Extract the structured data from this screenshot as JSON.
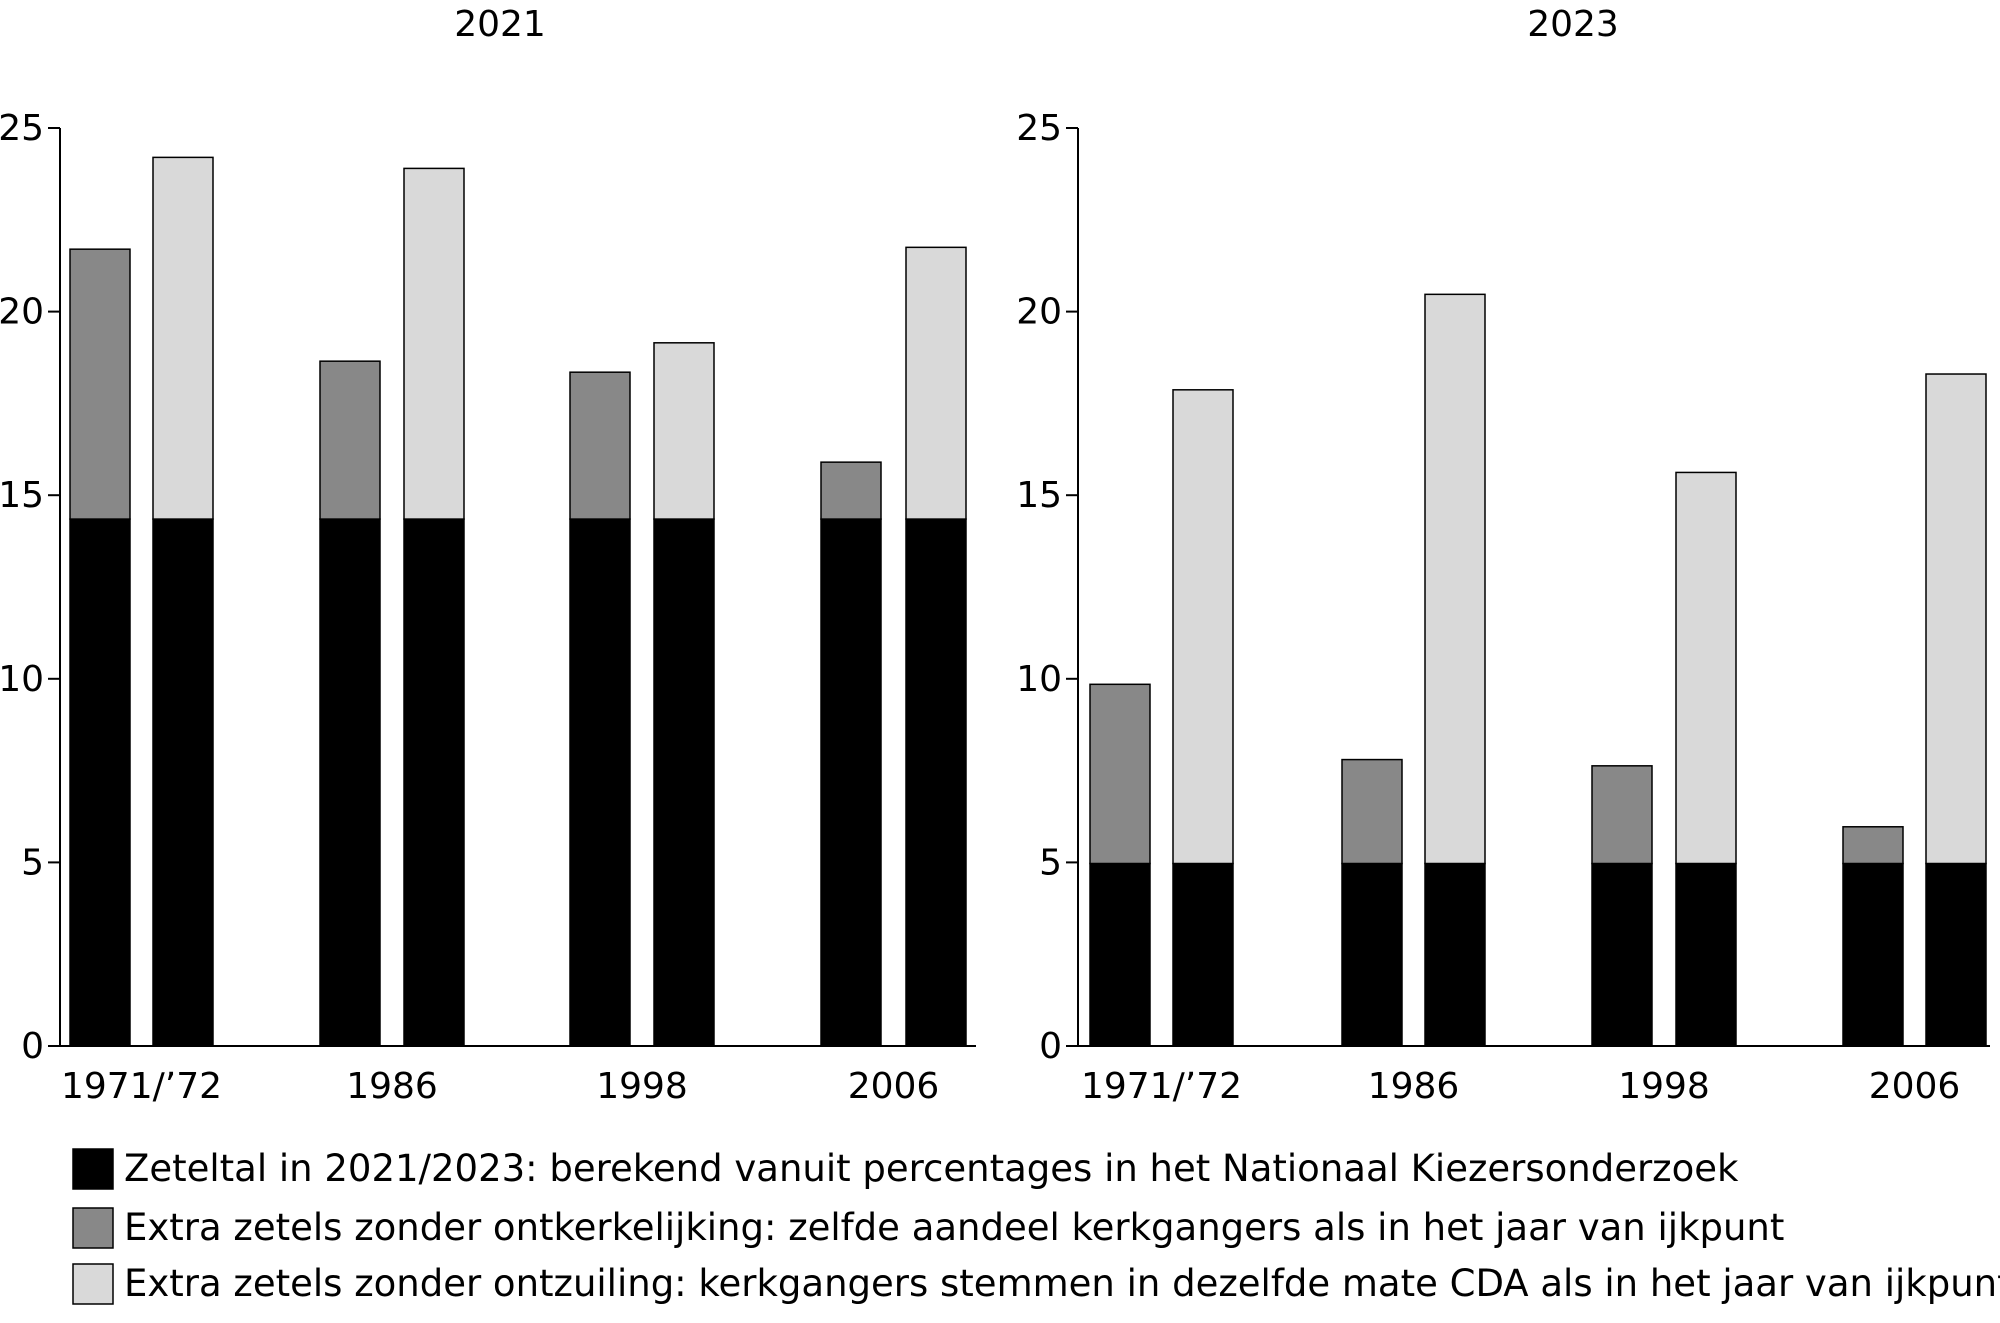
{
  "chart_data": [
    {
      "type": "bar",
      "stacked": true,
      "title": "2021",
      "categories": [
        "1971/’72",
        "1986",
        "1998",
        "2006"
      ],
      "ylim": [
        0,
        25
      ],
      "yticks": [
        0,
        5,
        10,
        15,
        20,
        25
      ],
      "bars": [
        {
          "category": "1971/’72",
          "scenario": "ontkerkelijking",
          "base": 14.35,
          "extra": 7.35
        },
        {
          "category": "1971/’72",
          "scenario": "ontzuiling",
          "base": 14.35,
          "extra": 9.85
        },
        {
          "category": "1986",
          "scenario": "ontkerkelijking",
          "base": 14.35,
          "extra": 4.3
        },
        {
          "category": "1986",
          "scenario": "ontzuiling",
          "base": 14.35,
          "extra": 9.55
        },
        {
          "category": "1998",
          "scenario": "ontkerkelijking",
          "base": 14.35,
          "extra": 4.0
        },
        {
          "category": "1998",
          "scenario": "ontzuiling",
          "base": 14.35,
          "extra": 4.8
        },
        {
          "category": "2006",
          "scenario": "ontkerkelijking",
          "base": 14.35,
          "extra": 1.55
        },
        {
          "category": "2006",
          "scenario": "ontzuiling",
          "base": 14.35,
          "extra": 7.4
        }
      ]
    },
    {
      "type": "bar",
      "stacked": true,
      "title": "2023",
      "categories": [
        "1971/’72",
        "1986",
        "1998",
        "2006"
      ],
      "ylim": [
        0,
        25
      ],
      "yticks": [
        0,
        5,
        10,
        15,
        20,
        25
      ],
      "bars": [
        {
          "category": "1971/’72",
          "scenario": "ontkerkelijking",
          "base": 4.97,
          "extra": 4.88
        },
        {
          "category": "1971/’72",
          "scenario": "ontzuiling",
          "base": 4.97,
          "extra": 12.9
        },
        {
          "category": "1986",
          "scenario": "ontkerkelijking",
          "base": 4.97,
          "extra": 2.83
        },
        {
          "category": "1986",
          "scenario": "ontzuiling",
          "base": 4.97,
          "extra": 15.5
        },
        {
          "category": "1998",
          "scenario": "ontkerkelijking",
          "base": 4.97,
          "extra": 2.66
        },
        {
          "category": "1998",
          "scenario": "ontzuiling",
          "base": 4.97,
          "extra": 10.65
        },
        {
          "category": "2006",
          "scenario": "ontkerkelijking",
          "base": 4.97,
          "extra": 1.0
        },
        {
          "category": "2006",
          "scenario": "ontzuiling",
          "base": 4.97,
          "extra": 13.33
        }
      ]
    }
  ],
  "legend": [
    {
      "label": "Zeteltal in 2021/2023: berekend vanuit percentages in het Nationaal Kiezersonderzoek",
      "color": "#000000"
    },
    {
      "label": "Extra zetels zonder ontkerkelijking: zelfde aandeel kerkgangers als in het jaar van ijkpunt",
      "color": "#888888"
    },
    {
      "label": "Extra zetels zonder ontzuiling: kerkgangers stemmen in dezelfde mate CDA als in het jaar van ijkpunt",
      "color": "#d9d9d9"
    }
  ]
}
